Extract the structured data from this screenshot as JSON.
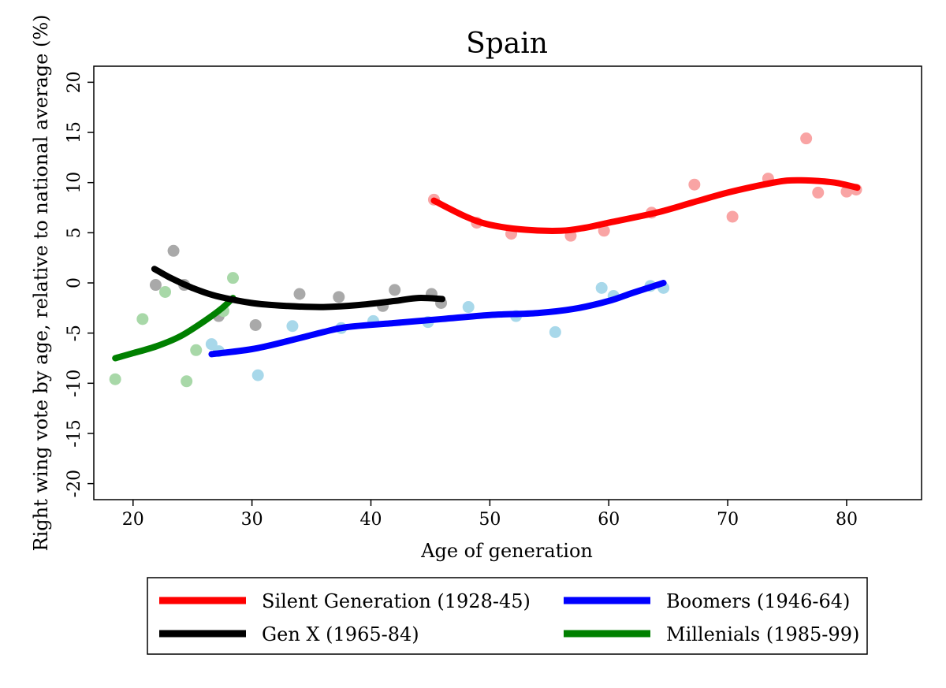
{
  "chart_data": {
    "type": "scatter",
    "title": "Spain",
    "xlabel": "Age of generation",
    "ylabel": "Right wing vote by age, relative to national average (%)",
    "xlim": [
      16.7,
      86.3
    ],
    "ylim": [
      -21.6,
      21.6
    ],
    "xticks": [
      20,
      30,
      40,
      50,
      60,
      70,
      80
    ],
    "yticks": [
      -20,
      -15,
      -10,
      -5,
      0,
      5,
      10,
      15,
      20
    ],
    "xtick_labels": [
      "20",
      "30",
      "40",
      "50",
      "60",
      "70",
      "80"
    ],
    "ytick_labels": [
      "-20",
      "-15",
      "-10",
      "-5",
      "0",
      "5",
      "10",
      "15",
      "20"
    ],
    "grid": false,
    "legend_placement": "bottom",
    "series": [
      {
        "name": "Silent Generation (1928-45)",
        "line_color": "#ff0000",
        "point_color": "#f9a4a4",
        "points": [
          [
            45.3,
            8.3
          ],
          [
            48.9,
            6.0
          ],
          [
            51.8,
            4.9
          ],
          [
            56.8,
            4.7
          ],
          [
            59.6,
            5.2
          ],
          [
            63.6,
            7.0
          ],
          [
            67.2,
            9.8
          ],
          [
            70.4,
            6.6
          ],
          [
            73.4,
            10.4
          ],
          [
            76.6,
            14.4
          ],
          [
            77.6,
            9.0
          ],
          [
            80.0,
            9.1
          ],
          [
            80.8,
            9.3
          ]
        ],
        "fit": [
          [
            45.3,
            8.2
          ],
          [
            48,
            6.6
          ],
          [
            50,
            5.8
          ],
          [
            53,
            5.3
          ],
          [
            56,
            5.2
          ],
          [
            58,
            5.5
          ],
          [
            60,
            6.0
          ],
          [
            64,
            7.0
          ],
          [
            67,
            8.0
          ],
          [
            70,
            9.0
          ],
          [
            73,
            9.8
          ],
          [
            75,
            10.2
          ],
          [
            77,
            10.2
          ],
          [
            79,
            10.0
          ],
          [
            80.9,
            9.5
          ]
        ]
      },
      {
        "name": "Boomers (1946-64)",
        "line_color": "#0000ff",
        "point_color": "#a8d8ea",
        "points": [
          [
            26.6,
            -6.1
          ],
          [
            27.2,
            -6.8
          ],
          [
            30.5,
            -9.2
          ],
          [
            33.4,
            -4.3
          ],
          [
            37.5,
            -4.5
          ],
          [
            40.2,
            -3.8
          ],
          [
            44.8,
            -3.9
          ],
          [
            48.2,
            -2.4
          ],
          [
            52.2,
            -3.3
          ],
          [
            55.5,
            -4.9
          ],
          [
            59.4,
            -0.5
          ],
          [
            60.4,
            -1.3
          ],
          [
            63.5,
            -0.3
          ],
          [
            64.6,
            -0.5
          ]
        ],
        "fit": [
          [
            26.6,
            -7.1
          ],
          [
            30,
            -6.6
          ],
          [
            33,
            -5.8
          ],
          [
            36,
            -4.9
          ],
          [
            38,
            -4.4
          ],
          [
            42,
            -4.0
          ],
          [
            46,
            -3.6
          ],
          [
            50,
            -3.2
          ],
          [
            54,
            -3.0
          ],
          [
            57,
            -2.6
          ],
          [
            60,
            -1.8
          ],
          [
            62,
            -1.0
          ],
          [
            64.6,
            0.0
          ]
        ]
      },
      {
        "name": "Gen X (1965-84)",
        "line_color": "#000000",
        "point_color": "#a9a9a9",
        "points": [
          [
            21.9,
            -0.2
          ],
          [
            23.4,
            3.2
          ],
          [
            24.3,
            -0.2
          ],
          [
            27.2,
            -3.3
          ],
          [
            30.3,
            -4.2
          ],
          [
            34.0,
            -1.1
          ],
          [
            37.3,
            -1.4
          ],
          [
            41.0,
            -2.3
          ],
          [
            42.0,
            -0.7
          ],
          [
            45.1,
            -1.1
          ],
          [
            45.9,
            -2.0
          ]
        ],
        "fit": [
          [
            21.8,
            1.4
          ],
          [
            23,
            0.6
          ],
          [
            25,
            -0.5
          ],
          [
            27,
            -1.3
          ],
          [
            30,
            -2.0
          ],
          [
            33,
            -2.3
          ],
          [
            36,
            -2.4
          ],
          [
            39,
            -2.2
          ],
          [
            42,
            -1.8
          ],
          [
            44,
            -1.5
          ],
          [
            46,
            -1.6
          ]
        ]
      },
      {
        "name": "Millenials (1985-99)",
        "line_color": "#008000",
        "point_color": "#a8d8a8",
        "points": [
          [
            18.5,
            -9.6
          ],
          [
            20.8,
            -3.6
          ],
          [
            22.7,
            -0.9
          ],
          [
            24.5,
            -9.8
          ],
          [
            25.3,
            -6.7
          ],
          [
            27.6,
            -2.8
          ],
          [
            28.4,
            0.5
          ]
        ],
        "fit": [
          [
            18.5,
            -7.5
          ],
          [
            20,
            -7.0
          ],
          [
            22,
            -6.3
          ],
          [
            24,
            -5.3
          ],
          [
            26,
            -3.8
          ],
          [
            27.5,
            -2.5
          ],
          [
            28.4,
            -1.5
          ]
        ]
      }
    ]
  }
}
